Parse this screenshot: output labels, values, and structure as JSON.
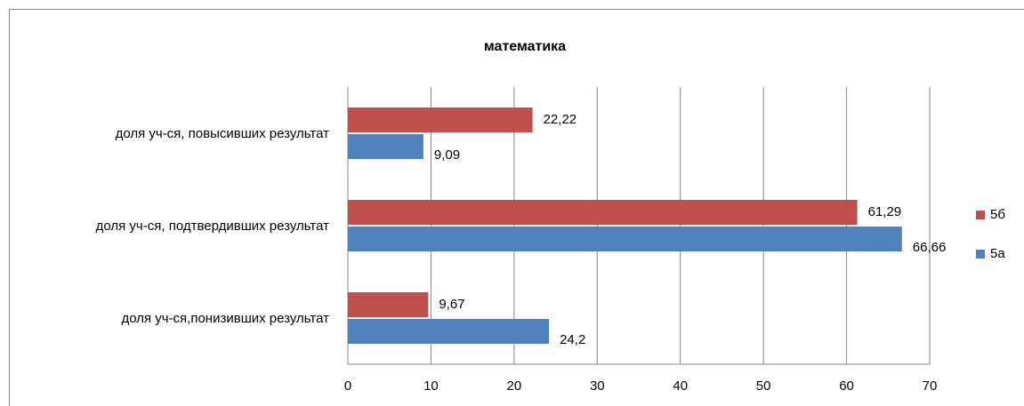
{
  "chart_data": {
    "type": "hbar",
    "title": "математика",
    "categories": [
      "доля уч-ся, повысивших результат",
      "доля уч-ся, подтвердивших результат",
      "доля уч-ся,понизивших результат"
    ],
    "series": [
      {
        "name": "5б",
        "color": "#c0504d",
        "values": [
          22.22,
          61.29,
          9.67
        ],
        "value_labels": [
          "22,22",
          "61,29",
          "9,67"
        ]
      },
      {
        "name": "5а",
        "color": "#4f81bd",
        "values": [
          9.09,
          66.66,
          24.2
        ],
        "value_labels": [
          "9,09",
          "66,66",
          "24,2"
        ]
      }
    ],
    "xlim": [
      0,
      70
    ],
    "xticks": [
      0,
      10,
      20,
      30,
      40,
      50,
      60,
      70
    ],
    "grid": true,
    "legend": "right"
  }
}
